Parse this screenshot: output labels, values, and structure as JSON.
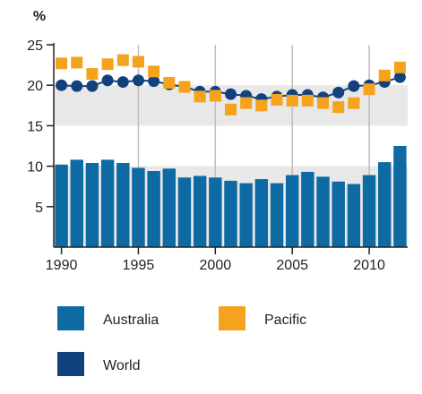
{
  "chart_data": {
    "type": "bar",
    "title": "",
    "xlabel": "",
    "ylabel": "%",
    "ylim": [
      0,
      25
    ],
    "yticks": [
      5,
      10,
      15,
      20,
      25
    ],
    "xticks": [
      1990,
      1995,
      2000,
      2005,
      2010
    ],
    "x": [
      1990,
      1991,
      1992,
      1993,
      1994,
      1995,
      1996,
      1997,
      1998,
      1999,
      2000,
      2001,
      2002,
      2003,
      2004,
      2005,
      2006,
      2007,
      2008,
      2009,
      2010,
      2011,
      2012
    ],
    "series": [
      {
        "name": "Australia",
        "type": "bar",
        "color": "#0e6aa3",
        "values": [
          10.2,
          10.8,
          10.4,
          10.8,
          10.4,
          9.8,
          9.4,
          9.7,
          8.6,
          8.8,
          8.6,
          8.2,
          7.9,
          8.4,
          7.9,
          8.9,
          9.3,
          8.7,
          8.1,
          7.8,
          8.9,
          10.5,
          12.5
        ]
      },
      {
        "name": "Pacific",
        "type": "scatter",
        "marker": "square",
        "color": "#f5a21c",
        "values": [
          22.7,
          22.8,
          21.4,
          22.6,
          23.1,
          22.9,
          21.7,
          20.3,
          19.8,
          18.6,
          18.7,
          17.0,
          17.8,
          17.5,
          18.2,
          18.1,
          18.1,
          17.8,
          17.3,
          17.8,
          19.5,
          21.2,
          22.2
        ]
      },
      {
        "name": "World",
        "type": "line",
        "marker": "circle",
        "color": "#12427e",
        "values": [
          20.0,
          19.9,
          19.9,
          20.6,
          20.4,
          20.6,
          20.5,
          20.1,
          19.8,
          19.2,
          19.2,
          18.9,
          18.7,
          18.3,
          18.6,
          18.8,
          18.8,
          18.5,
          19.1,
          19.9,
          20.0,
          20.4,
          21.0
        ]
      }
    ],
    "bands": [
      {
        "from": 15,
        "to": 20,
        "color": "#e8e8e8"
      },
      {
        "from": 0,
        "to": 10,
        "color": "#e8e8e8"
      }
    ],
    "grid": "vertical",
    "legend": {
      "position": "bottom"
    }
  }
}
